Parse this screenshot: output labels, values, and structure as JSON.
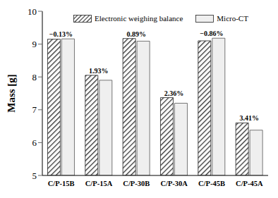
{
  "chart_data": {
    "type": "bar",
    "categories": [
      "C/P-15B",
      "C/P-15A",
      "C/P-30B",
      "C/P-30A",
      "C/P-45B",
      "C/P-45A"
    ],
    "series": [
      {
        "name": "Electronic weighing balance",
        "color": "#333333",
        "values": [
          9.15,
          8.05,
          9.17,
          7.37,
          9.1,
          6.6
        ]
      },
      {
        "name": "Micro-CT",
        "color": "#efefef",
        "values": [
          9.16,
          7.9,
          9.09,
          7.2,
          9.18,
          6.38
        ]
      }
    ],
    "y_label": "Mass [g]",
    "ylim": [
      5,
      10
    ],
    "yticks": [
      5,
      6,
      7,
      8,
      9,
      10
    ],
    "annotations": [
      "−0.13%",
      "1.93%",
      "0.89%",
      "2.36%",
      "−0.86%",
      "3.41%"
    ],
    "grid": false,
    "legend": "top"
  }
}
